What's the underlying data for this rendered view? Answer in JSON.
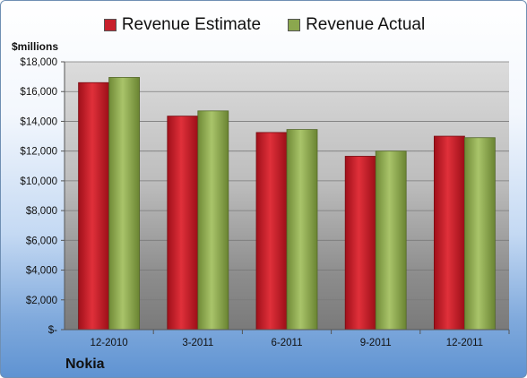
{
  "chart_data": {
    "type": "bar",
    "title": "",
    "unit_label": "$millions",
    "company": "Nokia",
    "categories": [
      "12-2010",
      "3-2011",
      "6-2011",
      "9-2011",
      "12-2011"
    ],
    "series": [
      {
        "name": "Revenue Estimate",
        "color": "#c8202c",
        "values": [
          16600,
          14350,
          13250,
          11650,
          13000
        ]
      },
      {
        "name": "Revenue Actual",
        "color": "#8ba74e",
        "values": [
          16950,
          14700,
          13450,
          12000,
          12900
        ]
      }
    ],
    "ylim": [
      0,
      18000
    ],
    "yticks": [
      0,
      2000,
      4000,
      6000,
      8000,
      10000,
      12000,
      14000,
      16000,
      18000
    ],
    "ytick_labels": [
      "$-",
      "$2,000",
      "$4,000",
      "$6,000",
      "$8,000",
      "$10,000",
      "$12,000",
      "$14,000",
      "$16,000",
      "$18,000"
    ],
    "grid": true,
    "legend_position": "top"
  }
}
